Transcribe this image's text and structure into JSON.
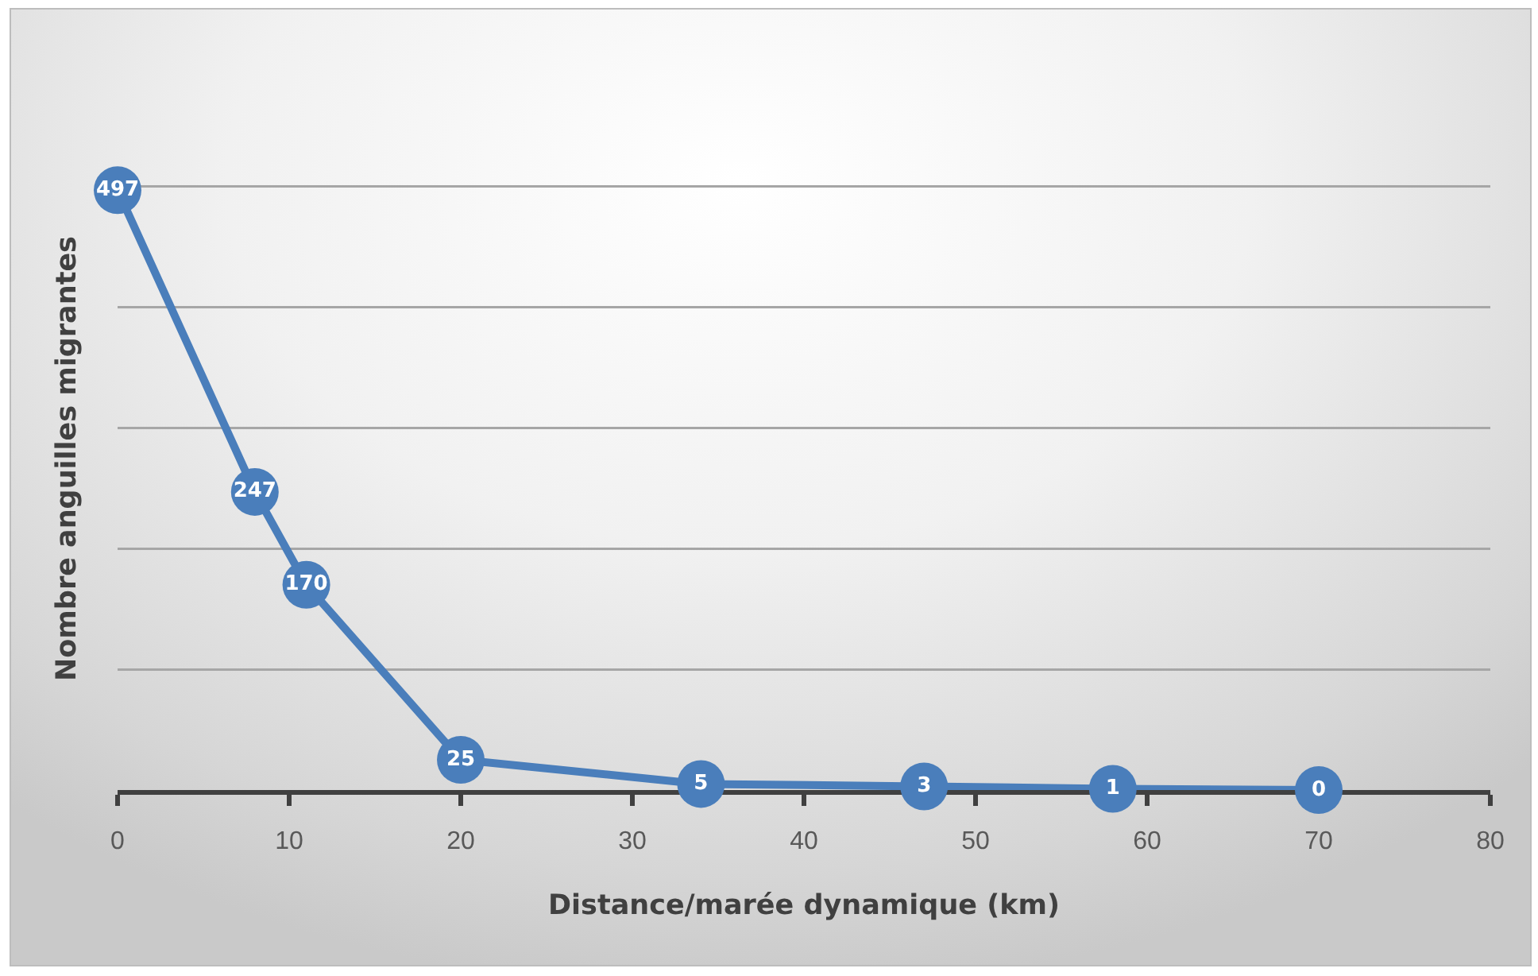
{
  "chart_data": {
    "type": "line",
    "xlabel": "Distance/marée dynamique (km)",
    "ylabel": "Nombre anguilles migrantes",
    "x": [
      0,
      8,
      11,
      20,
      34,
      47,
      58,
      70
    ],
    "series": [
      {
        "color": "#4a7ebb",
        "values": [
          497,
          247,
          170,
          25,
          5,
          3,
          1,
          0
        ]
      }
    ],
    "xlim": [
      0,
      80
    ],
    "xticks": [
      0,
      10,
      20,
      30,
      40,
      50,
      60,
      70,
      80
    ],
    "tick_labels": "x",
    "grid": "y",
    "marker": "circle",
    "line_style": "solid",
    "data_labels": true
  }
}
